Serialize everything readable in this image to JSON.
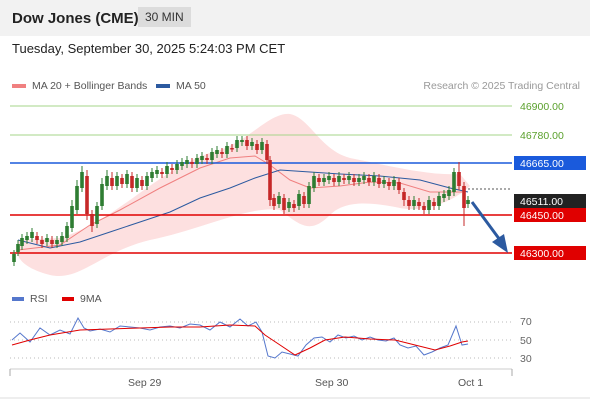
{
  "header": {
    "title": "Dow Jones (CME)",
    "timeframe": "30 MIN"
  },
  "datetime": "Tuesday, September 30, 2025 5:24:03 PM CET",
  "legend": [
    {
      "label": "MA 20 + Bollinger Bands",
      "color": "#f08080"
    },
    {
      "label": "MA 50",
      "color": "#2c5aa0"
    }
  ],
  "credit": "Research © 2025 Trading Central",
  "levels": [
    {
      "label": "46900.00",
      "kind": "resistance",
      "color": "#5aa02c"
    },
    {
      "label": "46780.00",
      "kind": "resistance",
      "color": "#5aa02c"
    },
    {
      "label": "46665.00",
      "kind": "pivot",
      "color": "#1a5adc"
    },
    {
      "label": "46511.00",
      "kind": "last",
      "color": "#222222"
    },
    {
      "label": "46450.00",
      "kind": "support",
      "color": "#e00000"
    },
    {
      "label": "46300.00",
      "kind": "support",
      "color": "#e00000"
    }
  ],
  "rsi_legend": [
    {
      "label": "RSI",
      "color": "#5577cc"
    },
    {
      "label": "9MA",
      "color": "#e00000"
    }
  ],
  "rsi_ticks": [
    "70",
    "50",
    "30"
  ],
  "x_labels": [
    "Sep 29",
    "Sep 30",
    "Oct 1"
  ],
  "colors": {
    "up": "#2e7d32",
    "down": "#c62828",
    "band": "#fde0e0",
    "ma20": "#f08080",
    "ma50": "#2c5aa0",
    "arrow": "#2c5aa0"
  }
}
